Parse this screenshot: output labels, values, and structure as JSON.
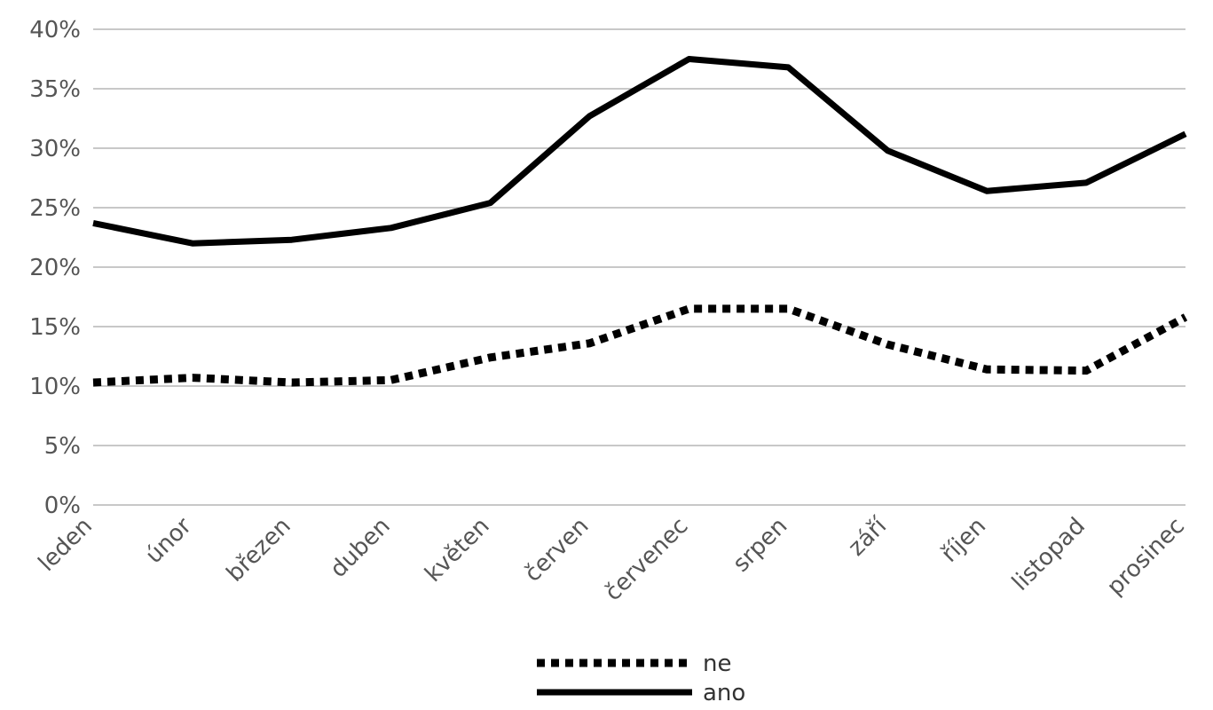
{
  "chart_data": {
    "type": "line",
    "title": "",
    "xlabel": "",
    "ylabel": "",
    "categories": [
      "leden",
      "únor",
      "březen",
      "duben",
      "květen",
      "červen",
      "červenec",
      "srpen",
      "září",
      "říjen",
      "listopad",
      "prosinec"
    ],
    "y_ticks": [
      "0%",
      "5%",
      "10%",
      "15%",
      "20%",
      "25%",
      "30%",
      "35%",
      "40%"
    ],
    "ylim": [
      0,
      40
    ],
    "y_unit": "%",
    "grid": true,
    "legend_position": "bottom",
    "series": [
      {
        "name": "ne",
        "style": "dotted",
        "color": "#000000",
        "values": [
          10.3,
          10.7,
          10.3,
          10.5,
          12.4,
          13.6,
          16.5,
          16.5,
          13.5,
          11.4,
          11.3,
          15.8
        ]
      },
      {
        "name": "ano",
        "style": "solid",
        "color": "#000000",
        "values": [
          23.7,
          22.0,
          22.3,
          23.3,
          25.4,
          32.7,
          37.5,
          36.8,
          29.8,
          26.4,
          27.1,
          31.2
        ]
      }
    ],
    "colors": {
      "grid": "#c8c8c8",
      "tick_text": "#555555",
      "line": "#000000"
    }
  }
}
